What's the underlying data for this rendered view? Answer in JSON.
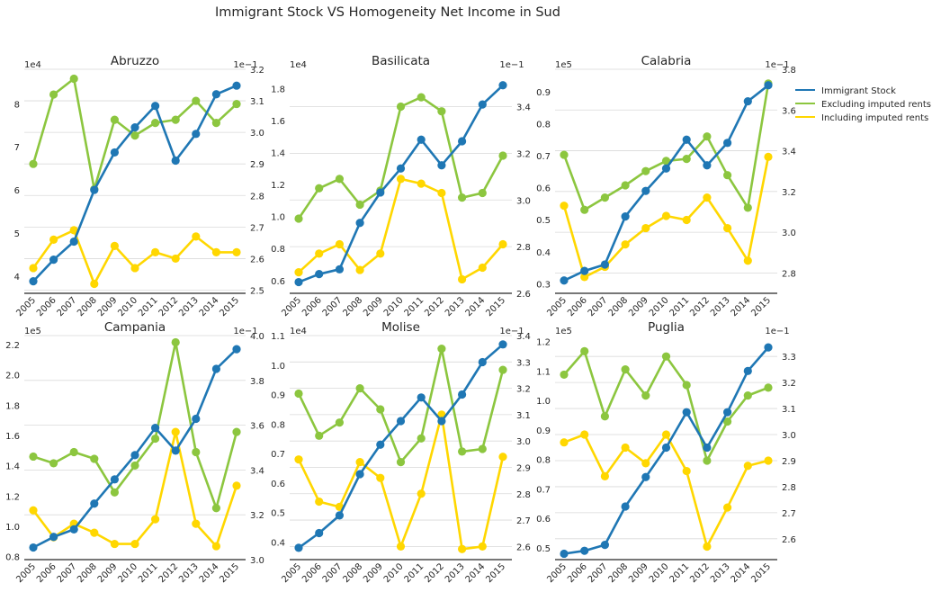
{
  "figure": {
    "title": "Immigrant Stock VS Homogeneity Net Income in Sud"
  },
  "colors": {
    "immigrant": "#1f77b4",
    "excluding": "#8cc63f",
    "including": "#ffd700"
  },
  "legend": {
    "placement": "right",
    "items": [
      {
        "label": "Immigrant Stock",
        "color": "#1f77b4"
      },
      {
        "label": "Excluding imputed rents",
        "color": "#8cc63f"
      },
      {
        "label": "Including imputed rents",
        "color": "#ffd700"
      }
    ]
  },
  "chart_data": [
    {
      "type": "line",
      "title": "Abruzzo",
      "x": [
        "2005",
        "2006",
        "2007",
        "2008",
        "2009",
        "2010",
        "2011",
        "2012",
        "2013",
        "2014",
        "2015"
      ],
      "left_axis": {
        "offset_label": "1e4",
        "ylim": [
          3.6,
          8.8
        ],
        "ticks": [
          4,
          5,
          6,
          7,
          8
        ],
        "tick_labels": [
          "4",
          "5",
          "6",
          "7",
          "8"
        ]
      },
      "right_axis": {
        "offset_label": "1e−1",
        "ylim": [
          2.49,
          3.2
        ],
        "ticks": [
          2.5,
          2.6,
          2.7,
          2.8,
          2.9,
          3.0,
          3.1,
          3.2
        ],
        "tick_labels": [
          "2.5",
          "2.6",
          "2.7",
          "2.8",
          "2.9",
          "3.0",
          "3.1",
          "3.2"
        ]
      },
      "series": [
        {
          "name": "Immigrant Stock",
          "axis": "left",
          "values": [
            3.88,
            4.38,
            4.8,
            6.0,
            6.87,
            7.45,
            7.95,
            6.68,
            7.3,
            8.22,
            8.42
          ]
        },
        {
          "name": "Excluding imputed rents",
          "axis": "right",
          "values": [
            2.9,
            3.12,
            3.17,
            2.82,
            3.04,
            2.99,
            3.03,
            3.04,
            3.1,
            3.03,
            3.09
          ]
        },
        {
          "name": "Including imputed rents",
          "axis": "right",
          "values": [
            2.57,
            2.66,
            2.69,
            2.52,
            2.64,
            2.57,
            2.62,
            2.6,
            2.67,
            2.62,
            2.62
          ]
        }
      ]
    },
    {
      "type": "line",
      "title": "Basilicata",
      "x": [
        "2005",
        "2006",
        "2007",
        "2008",
        "2009",
        "2010",
        "2011",
        "2012",
        "2013",
        "2014",
        "2015"
      ],
      "left_axis": {
        "offset_label": "1e4",
        "ylim": [
          0.52,
          1.92
        ],
        "ticks": [
          0.6,
          0.8,
          1.0,
          1.2,
          1.4,
          1.6,
          1.8
        ],
        "tick_labels": [
          "0.6",
          "0.8",
          "1.0",
          "1.2",
          "1.4",
          "1.6",
          "1.8"
        ]
      },
      "right_axis": {
        "offset_label": "1e−1",
        "ylim": [
          2.6,
          3.56
        ],
        "ticks": [
          2.6,
          2.8,
          3.0,
          3.2,
          3.4
        ],
        "tick_labels": [
          "2.6",
          "2.8",
          "3.0",
          "3.2",
          "3.4"
        ]
      },
      "series": [
        {
          "name": "Immigrant Stock",
          "axis": "left",
          "values": [
            0.59,
            0.64,
            0.67,
            0.96,
            1.15,
            1.3,
            1.48,
            1.32,
            1.47,
            1.7,
            1.82
          ]
        },
        {
          "name": "Excluding imputed rents",
          "axis": "right",
          "values": [
            2.92,
            3.05,
            3.09,
            2.98,
            3.04,
            3.4,
            3.44,
            3.38,
            3.01,
            3.03,
            3.19
          ]
        },
        {
          "name": "Including imputed rents",
          "axis": "right",
          "values": [
            2.69,
            2.77,
            2.81,
            2.7,
            2.77,
            3.09,
            3.07,
            3.03,
            2.66,
            2.71,
            2.81
          ]
        }
      ]
    },
    {
      "type": "line",
      "title": "Calabria",
      "x": [
        "2005",
        "2006",
        "2007",
        "2008",
        "2009",
        "2010",
        "2011",
        "2012",
        "2013",
        "2014",
        "2015"
      ],
      "left_axis": {
        "offset_label": "1e5",
        "ylim": [
          0.27,
          0.97
        ],
        "ticks": [
          0.3,
          0.4,
          0.5,
          0.6,
          0.7,
          0.8,
          0.9
        ],
        "tick_labels": [
          "0.3",
          "0.4",
          "0.5",
          "0.6",
          "0.7",
          "0.8",
          "0.9"
        ]
      },
      "right_axis": {
        "offset_label": "1e−1",
        "ylim": [
          2.7,
          3.8
        ],
        "ticks": [
          2.8,
          3.0,
          3.2,
          3.4,
          3.6,
          3.8
        ],
        "tick_labels": [
          "2.8",
          "3.0",
          "3.2",
          "3.4",
          "3.6",
          "3.8"
        ]
      },
      "series": [
        {
          "name": "Immigrant Stock",
          "axis": "left",
          "values": [
            0.31,
            0.34,
            0.36,
            0.51,
            0.59,
            0.66,
            0.75,
            0.67,
            0.74,
            0.87,
            0.92
          ]
        },
        {
          "name": "Excluding imputed rents",
          "axis": "right",
          "values": [
            3.38,
            3.11,
            3.17,
            3.23,
            3.3,
            3.35,
            3.36,
            3.47,
            3.28,
            3.12,
            3.73
          ]
        },
        {
          "name": "Including imputed rents",
          "axis": "right",
          "values": [
            3.13,
            2.78,
            2.83,
            2.94,
            3.02,
            3.08,
            3.06,
            3.17,
            3.02,
            2.86,
            3.37
          ]
        }
      ]
    },
    {
      "type": "line",
      "title": "Campania",
      "x": [
        "2005",
        "2006",
        "2007",
        "2008",
        "2009",
        "2010",
        "2011",
        "2012",
        "2013",
        "2014",
        "2015"
      ],
      "left_axis": {
        "offset_label": "1e5",
        "ylim": [
          0.78,
          2.26
        ],
        "ticks": [
          0.8,
          1.0,
          1.2,
          1.4,
          1.6,
          1.8,
          2.0,
          2.2
        ],
        "tick_labels": [
          "0.8",
          "1.0",
          "1.2",
          "1.4",
          "1.6",
          "1.8",
          "2.0",
          "2.2"
        ]
      },
      "right_axis": {
        "offset_label": "1e−1",
        "ylim": [
          3.0,
          4.0
        ],
        "ticks": [
          3.0,
          3.2,
          3.4,
          3.6,
          3.8,
          4.0
        ],
        "tick_labels": [
          "3.0",
          "3.2",
          "3.4",
          "3.6",
          "3.8",
          "4.0"
        ]
      },
      "series": [
        {
          "name": "Immigrant Stock",
          "axis": "left",
          "values": [
            0.86,
            0.93,
            0.98,
            1.15,
            1.31,
            1.47,
            1.65,
            1.5,
            1.71,
            2.04,
            2.17
          ]
        },
        {
          "name": "Excluding imputed rents",
          "axis": "right",
          "values": [
            3.46,
            3.43,
            3.48,
            3.45,
            3.3,
            3.42,
            3.54,
            3.97,
            3.48,
            3.23,
            3.57
          ]
        },
        {
          "name": "Including imputed rents",
          "axis": "right",
          "values": [
            3.22,
            3.1,
            3.16,
            3.12,
            3.07,
            3.07,
            3.18,
            3.57,
            3.16,
            3.06,
            3.33
          ]
        }
      ]
    },
    {
      "type": "line",
      "title": "Molise",
      "x": [
        "2005",
        "2006",
        "2007",
        "2008",
        "2009",
        "2010",
        "2011",
        "2012",
        "2013",
        "2014",
        "2015"
      ],
      "left_axis": {
        "offset_label": "1e4",
        "ylim": [
          0.34,
          1.1
        ],
        "ticks": [
          0.4,
          0.5,
          0.6,
          0.7,
          0.8,
          0.9,
          1.0,
          1.1
        ],
        "tick_labels": [
          "0.4",
          "0.5",
          "0.6",
          "0.7",
          "0.8",
          "0.9",
          "1.0",
          "1.1"
        ]
      },
      "right_axis": {
        "offset_label": "1e−1",
        "ylim": [
          2.55,
          3.4
        ],
        "ticks": [
          2.6,
          2.7,
          2.8,
          2.9,
          3.0,
          3.1,
          3.2,
          3.3,
          3.4
        ],
        "tick_labels": [
          "2.6",
          "2.7",
          "2.8",
          "2.9",
          "3.0",
          "3.1",
          "3.2",
          "3.3",
          "3.4"
        ]
      },
      "series": [
        {
          "name": "Immigrant Stock",
          "axis": "left",
          "values": [
            0.38,
            0.43,
            0.49,
            0.63,
            0.73,
            0.81,
            0.89,
            0.81,
            0.9,
            1.01,
            1.07
          ]
        },
        {
          "name": "Excluding imputed rents",
          "axis": "right",
          "values": [
            3.18,
            3.02,
            3.07,
            3.2,
            3.12,
            2.92,
            3.01,
            3.35,
            2.96,
            2.97,
            3.27
          ]
        },
        {
          "name": "Including imputed rents",
          "axis": "right",
          "values": [
            2.93,
            2.77,
            2.75,
            2.92,
            2.86,
            2.6,
            2.8,
            3.1,
            2.59,
            2.6,
            2.94
          ]
        }
      ]
    },
    {
      "type": "line",
      "title": "Puglia",
      "x": [
        "2005",
        "2006",
        "2007",
        "2008",
        "2009",
        "2010",
        "2011",
        "2012",
        "2013",
        "2014",
        "2015"
      ],
      "left_axis": {
        "offset_label": "1e5",
        "ylim": [
          0.46,
          1.22
        ],
        "ticks": [
          0.5,
          0.6,
          0.7,
          0.8,
          0.9,
          1.0,
          1.1,
          1.2
        ],
        "tick_labels": [
          "0.5",
          "0.6",
          "0.7",
          "0.8",
          "0.9",
          "1.0",
          "1.1",
          "1.2"
        ]
      },
      "right_axis": {
        "offset_label": "1e−1",
        "ylim": [
          2.52,
          3.38
        ],
        "ticks": [
          2.6,
          2.7,
          2.8,
          2.9,
          3.0,
          3.1,
          3.2,
          3.3
        ],
        "tick_labels": [
          "2.6",
          "2.7",
          "2.8",
          "2.9",
          "3.0",
          "3.1",
          "3.2",
          "3.3"
        ]
      },
      "series": [
        {
          "name": "Immigrant Stock",
          "axis": "left",
          "values": [
            0.48,
            0.49,
            0.51,
            0.64,
            0.74,
            0.84,
            0.96,
            0.84,
            0.96,
            1.1,
            1.18
          ]
        },
        {
          "name": "Excluding imputed rents",
          "axis": "right",
          "values": [
            3.23,
            3.32,
            3.07,
            3.25,
            3.15,
            3.3,
            3.19,
            2.9,
            3.05,
            3.15,
            3.18
          ]
        },
        {
          "name": "Including imputed rents",
          "axis": "right",
          "values": [
            2.97,
            3.0,
            2.84,
            2.95,
            2.89,
            3.0,
            2.86,
            2.57,
            2.72,
            2.88,
            2.9
          ]
        }
      ]
    }
  ]
}
